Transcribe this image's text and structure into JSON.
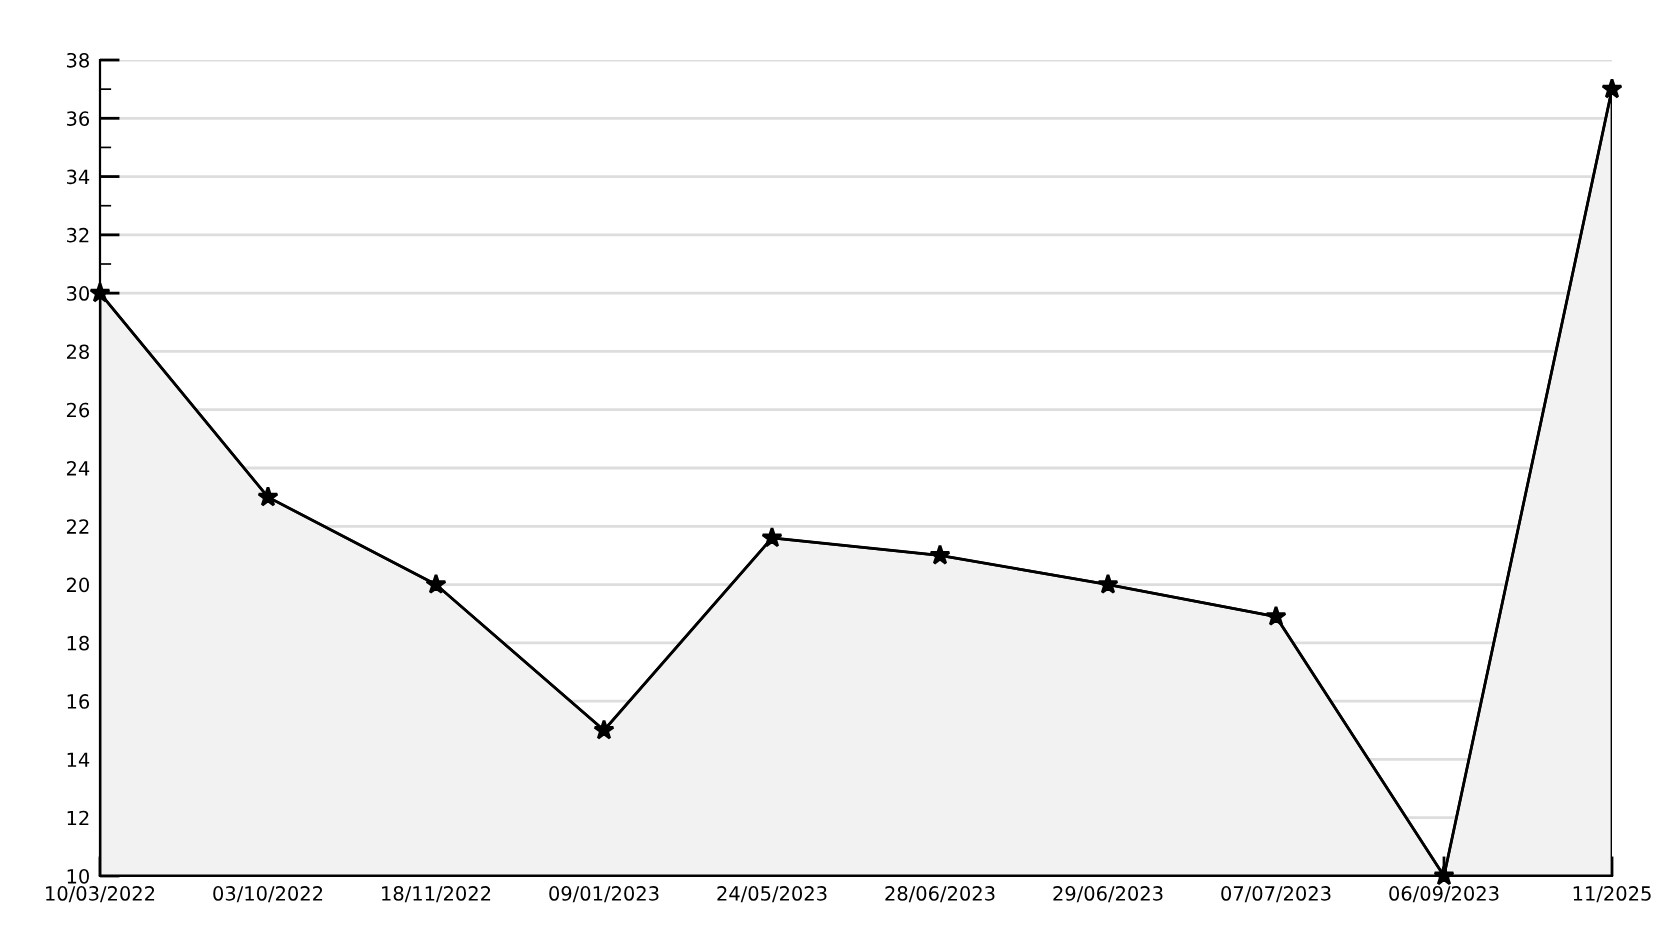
{
  "chart_data": {
    "type": "area",
    "categories": [
      "10/03/2022",
      "03/10/2022",
      "18/11/2022",
      "09/01/2023",
      "24/05/2023",
      "28/06/2023",
      "29/06/2023",
      "07/07/2023",
      "06/09/2023",
      "11/2025"
    ],
    "series": [
      {
        "color": "#000000",
        "values": [
          30,
          23,
          20,
          15,
          21.6,
          21,
          20,
          18.9,
          10,
          37
        ]
      }
    ],
    "ylim": [
      10,
      38
    ],
    "yticks": [
      10,
      {
        "value": 11,
        "label": null
      },
      12,
      {
        "value": 13,
        "label": null
      },
      14,
      {
        "value": 15,
        "label": null
      },
      16,
      {
        "value": 17,
        "label": null
      },
      18,
      {
        "value": 19,
        "label": null
      },
      20,
      {
        "value": 21,
        "label": null
      },
      22,
      {
        "value": 23,
        "label": null
      },
      24,
      {
        "value": 25,
        "label": null
      },
      26,
      {
        "value": 27,
        "label": null
      },
      28,
      {
        "value": 29,
        "label": null
      },
      30,
      {
        "value": 31,
        "label": null
      },
      32,
      {
        "value": 33,
        "label": null
      },
      34,
      {
        "value": 35,
        "label": null
      },
      36,
      {
        "value": 37,
        "label": null
      },
      38
    ],
    "grid": "y",
    "marker": "star",
    "line_style": "solid"
  }
}
